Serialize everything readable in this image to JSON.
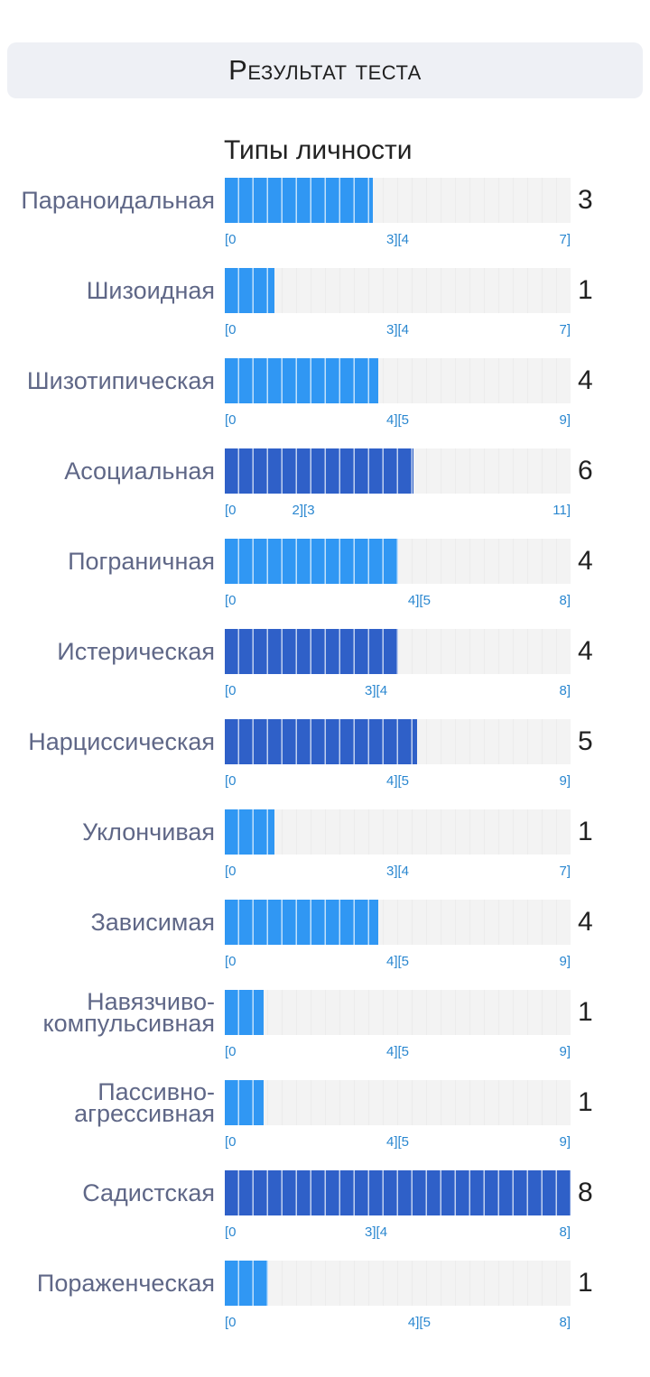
{
  "header": {
    "title": "Результат теста"
  },
  "chart_data": {
    "type": "bar",
    "title": "Типы личности",
    "colors": {
      "normal": "#3097f3",
      "high": "#2f60c8",
      "track": "#f3f3f3",
      "tick": "#2a87d0",
      "label": "#5f6787"
    },
    "rows": [
      {
        "label": "Параноидальная",
        "value": 3,
        "max": 7,
        "lo": "[0",
        "mid": "3][4",
        "split": 3,
        "hi": "7]",
        "level": "normal"
      },
      {
        "label": "Шизоидная",
        "value": 1,
        "max": 7,
        "lo": "[0",
        "mid": "3][4",
        "split": 3,
        "hi": "7]",
        "level": "normal"
      },
      {
        "label": "Шизотипическая",
        "value": 4,
        "max": 9,
        "lo": "[0",
        "mid": "4][5",
        "split": 4,
        "hi": "9]",
        "level": "normal"
      },
      {
        "label": "Асоциальная",
        "value": 6,
        "max": 11,
        "lo": "[0",
        "mid": "2][3",
        "split": 2,
        "hi": "11]",
        "level": "high"
      },
      {
        "label": "Пограничная",
        "value": 4,
        "max": 8,
        "lo": "[0",
        "mid": "4][5",
        "split": 4,
        "hi": "8]",
        "level": "normal"
      },
      {
        "label": "Истерическая",
        "value": 4,
        "max": 8,
        "lo": "[0",
        "mid": "3][4",
        "split": 3,
        "hi": "8]",
        "level": "high"
      },
      {
        "label": "Нарциссическая",
        "value": 5,
        "max": 9,
        "lo": "[0",
        "mid": "4][5",
        "split": 4,
        "hi": "9]",
        "level": "high"
      },
      {
        "label": "Уклончивая",
        "value": 1,
        "max": 7,
        "lo": "[0",
        "mid": "3][4",
        "split": 3,
        "hi": "7]",
        "level": "normal"
      },
      {
        "label": "Зависимая",
        "value": 4,
        "max": 9,
        "lo": "[0",
        "mid": "4][5",
        "split": 4,
        "hi": "9]",
        "level": "normal"
      },
      {
        "label": "Навязчиво-\nкомпульсивная",
        "value": 1,
        "max": 9,
        "lo": "[0",
        "mid": "4][5",
        "split": 4,
        "hi": "9]",
        "level": "normal"
      },
      {
        "label": "Пассивно-\nагрессивная",
        "value": 1,
        "max": 9,
        "lo": "[0",
        "mid": "4][5",
        "split": 4,
        "hi": "9]",
        "level": "normal"
      },
      {
        "label": "Садистская",
        "value": 8,
        "max": 8,
        "lo": "[0",
        "mid": "3][4",
        "split": 3,
        "hi": "8]",
        "level": "high"
      },
      {
        "label": "Пораженческая",
        "value": 1,
        "max": 8,
        "lo": "[0",
        "mid": "4][5",
        "split": 4,
        "hi": "8]",
        "level": "normal"
      }
    ]
  }
}
